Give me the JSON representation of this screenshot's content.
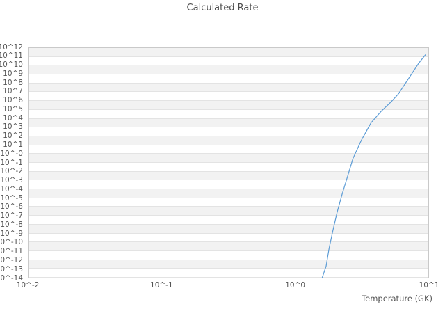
{
  "chart_data": {
    "type": "line",
    "title": "Calculated Rate",
    "xlabel": "Temperature (GK)",
    "ylabel": "",
    "x_scale": "log10",
    "y_scale": "log10",
    "xlim_log10": [
      -2,
      1
    ],
    "ylim_log10": [
      -14,
      12
    ],
    "x_tick_labels": [
      "10^-2",
      "10^-1",
      "10^0",
      "10^1"
    ],
    "y_tick_labels": [
      "10^12",
      "10^11",
      "10^10",
      "10^9",
      "10^8",
      "10^7",
      "10^6",
      "10^5",
      "10^4",
      "10^3",
      "10^2",
      "10^1",
      "10^-0",
      "10^-1",
      "10^-2",
      "10^-3",
      "10^-4",
      "10^-5",
      "10^-6",
      "10^-7",
      "10^-8",
      "10^-9",
      "10^-10",
      "10^-11",
      "10^-12",
      "10^-13",
      "10^-14"
    ],
    "grid": "horizontal gridlines with alternating shaded rows",
    "legend": "none",
    "series": [
      {
        "name": "calculated-rate",
        "color": "#5b9bd5",
        "temperature_GK": [
          1.6,
          1.71,
          1.8,
          1.92,
          2.07,
          2.25,
          2.47,
          2.72,
          3.13,
          3.72,
          4.47,
          5.25,
          5.96,
          6.68,
          7.53,
          8.49,
          9.51
        ],
        "rate": [
          1e-14,
          2e-13,
          2e-11,
          2e-09,
          2.5e-07,
          2.5e-05,
          0.0025,
          0.3,
          32.0,
          3500.0,
          79000.0,
          790000.0,
          6300000.0,
          85000000.0,
          1300000000.0,
          20000000000.0,
          170000000000.0
        ]
      }
    ]
  }
}
